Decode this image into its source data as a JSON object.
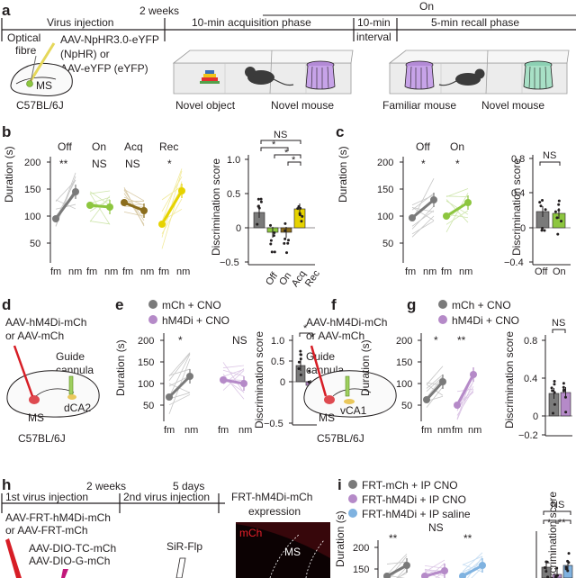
{
  "panels": {
    "a": "a",
    "b": "b",
    "c": "c",
    "d": "d",
    "e": "e",
    "f": "f",
    "g": "g",
    "h": "h",
    "i": "i"
  },
  "a": {
    "on": "On",
    "two_weeks": "2 weeks",
    "virus": "Virus injection",
    "acq": "10-min acquisition phase",
    "interval_1": "10-min",
    "interval_2": "interval",
    "recall": "5-min recall phase",
    "fibre_1": "Optical",
    "fibre_2": "fibre",
    "aav_1": "AAV-NpHR3.0-eYFP",
    "aav_2": "(NpHR) or",
    "aav_3": "AAV-eYFP (eYFP)",
    "ms": "MS",
    "strain": "C57BL/6J",
    "novel_object": "Novel object",
    "novel_mouse": "Novel mouse",
    "familiar_mouse": "Familiar mouse",
    "novel_mouse_2": "Novel mouse"
  },
  "b": {
    "groups": [
      "Off",
      "On",
      "Acq",
      "Rec"
    ],
    "sig": [
      "**",
      "NS",
      "NS",
      "*"
    ],
    "ylabel": "Duration (s)",
    "yticks": [
      "200",
      "150",
      "100",
      "50"
    ],
    "xticks": [
      "fm",
      "nm",
      "fm",
      "nm",
      "fm",
      "nm",
      "fm",
      "nm"
    ],
    "bar_ylabel": "Discrimination score",
    "bar_yticks": [
      "1.0",
      "0.5",
      "0",
      "−0.5"
    ],
    "bar_xticks": [
      "Off",
      "On",
      "Acq",
      "Rec"
    ],
    "brackets": [
      "NS",
      "*",
      "*",
      "*"
    ]
  },
  "c": {
    "groups": [
      "Off",
      "On"
    ],
    "sig": [
      "*",
      "*"
    ],
    "ylabel": "Duration (s)",
    "yticks": [
      "200",
      "150",
      "100",
      "50"
    ],
    "xticks": [
      "fm",
      "nm",
      "fm",
      "nm"
    ],
    "bar_ylabel": "Discrimination score",
    "bar_yticks": [
      "0.8",
      "0.4",
      "0",
      "−0.4"
    ],
    "bar_xticks": [
      "Off",
      "On"
    ],
    "bracket": "NS"
  },
  "d": {
    "aav_1": "AAV-hM4Di-mCh",
    "aav_2": "or AAV-mCh",
    "guide_1": "Guide",
    "guide_2": "cannula",
    "region": "dCA2",
    "ms": "MS",
    "strain": "C57BL/6J"
  },
  "e": {
    "legend": [
      "mCh + CNO",
      "hM4Di + CNO"
    ],
    "sig": [
      "*",
      "NS"
    ],
    "ylabel": "Duration (s)",
    "yticks": [
      "200",
      "150",
      "100",
      "50"
    ],
    "xticks": [
      "fm",
      "nm",
      "fm",
      "nm"
    ],
    "bar_ylabel": "Discrimination score",
    "bar_yticks": [
      "1.0",
      "0.5",
      "0",
      "−0.5"
    ],
    "bracket": "*"
  },
  "f": {
    "aav_1": "AAV-hM4Di-mCh",
    "aav_2": "or AAV-mCh",
    "guide_1": "Guide",
    "guide_2": "cannula",
    "region": "vCA1",
    "ms": "MS",
    "strain": "C57BL/6J"
  },
  "g": {
    "legend": [
      "mCh + CNO",
      "hM4Di + CNO"
    ],
    "sig": [
      "*",
      "**"
    ],
    "ylabel": "Duration (s)",
    "yticks": [
      "200",
      "150",
      "100",
      "50"
    ],
    "xticks": [
      "fm",
      "nm",
      "fm",
      "nm"
    ],
    "bar_ylabel": "Discrimination score",
    "bar_yticks": [
      "0.8",
      "0.4",
      "0",
      "−0.2"
    ],
    "bracket": "NS"
  },
  "h": {
    "two_weeks": "2 weeks",
    "five_days": "5 days",
    "first": "1st virus injection",
    "second": "2nd virus injection",
    "aav_1": "AAV-FRT-hM4Di-mCh",
    "aav_2": "or AAV-FRT-mCh",
    "aav_3": "AAV-DIO-TC-mCh",
    "aav_4": "AAV-DIO-G-mCh",
    "sir": "SiR-Flp",
    "expr_1": "FRT-hM4Di-mCh",
    "expr_2": "expression",
    "mch": "mCh",
    "ms": "MS"
  },
  "i": {
    "legend": [
      "FRT-mCh + IP CNO",
      "FRT-hM4Di + IP CNO",
      "FRT-hM4Di + IP saline"
    ],
    "sig": [
      "**",
      "NS",
      "**"
    ],
    "ylabel": "Duration (s)",
    "yticks": [
      "200",
      "150"
    ],
    "bar_ylabel": "Discrimination score",
    "brackets": [
      "NS",
      "*",
      "**"
    ]
  },
  "colors": {
    "gray": "#7a7a7a",
    "light_gray": "#c6c6c6",
    "green": "#8dc63f",
    "olive": "#8b6d1c",
    "yellow": "#e6d300",
    "purple": "#b58ac8",
    "blue": "#7fb2e0",
    "red": "#d71e26"
  }
}
